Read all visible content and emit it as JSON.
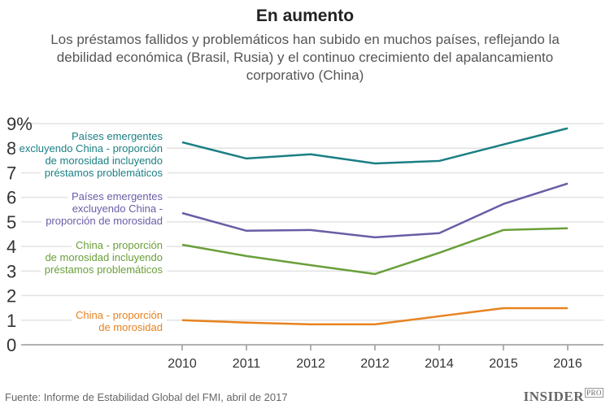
{
  "title": "En aumento",
  "subtitle": "Los préstamos fallidos y problemáticos han subido en muchos países, reflejando la debilidad económica (Brasil, Rusia) y el continuo crecimiento del apalancamiento corporativo (China)",
  "source": "Fuente: Informe de Estabilidad Global del FMI, abril de 2017",
  "logo": {
    "main": "INSIDER",
    "sub": "PRO"
  },
  "chart_data": {
    "type": "line",
    "title": "En aumento",
    "categories": [
      "2010",
      "2011",
      "2012",
      "2012",
      "2014",
      "2015",
      "2016"
    ],
    "ylim": [
      0,
      9
    ],
    "yticks": [
      "0",
      "1",
      "2",
      "3",
      "4",
      "5",
      "6",
      "7",
      "8",
      "9%"
    ],
    "grid": true,
    "legend": "inline-left",
    "series": [
      {
        "name": "Países emergentes excluyendo China - proporción de morosidad incluyendo préstamos problemáticos",
        "label_lines": [
          "Países emergentes",
          "excluyendo China - proporción",
          "de morosidad incluyendo",
          "préstamos problemáticos"
        ],
        "color": "#1a7f84",
        "values": [
          8.24,
          7.58,
          7.75,
          7.38,
          7.48,
          8.15,
          8.81
        ]
      },
      {
        "name": "Países emergentes excluyendo China - proporción de morosidad",
        "label_lines": [
          "Países emergentes",
          "excluyendo China -",
          "proporción de morosidad"
        ],
        "color": "#6b5ca5",
        "values": [
          5.36,
          4.64,
          4.67,
          4.37,
          4.54,
          5.73,
          6.56
        ]
      },
      {
        "name": "China - proporción de morosidad incluyendo préstamos problemáticos",
        "label_lines": [
          "China - proporción",
          "de morosidad incluyendo",
          "préstamos problemáticos"
        ],
        "color": "#6a9f3a",
        "values": [
          4.07,
          3.61,
          3.24,
          2.88,
          3.74,
          4.67,
          4.74
        ]
      },
      {
        "name": "China - proporción de morosidad",
        "label_lines": [
          "China - proporción",
          "de morosidad"
        ],
        "color": "#e8821e",
        "values": [
          1.0,
          0.9,
          0.83,
          0.83,
          1.16,
          1.49,
          1.49
        ]
      }
    ]
  }
}
